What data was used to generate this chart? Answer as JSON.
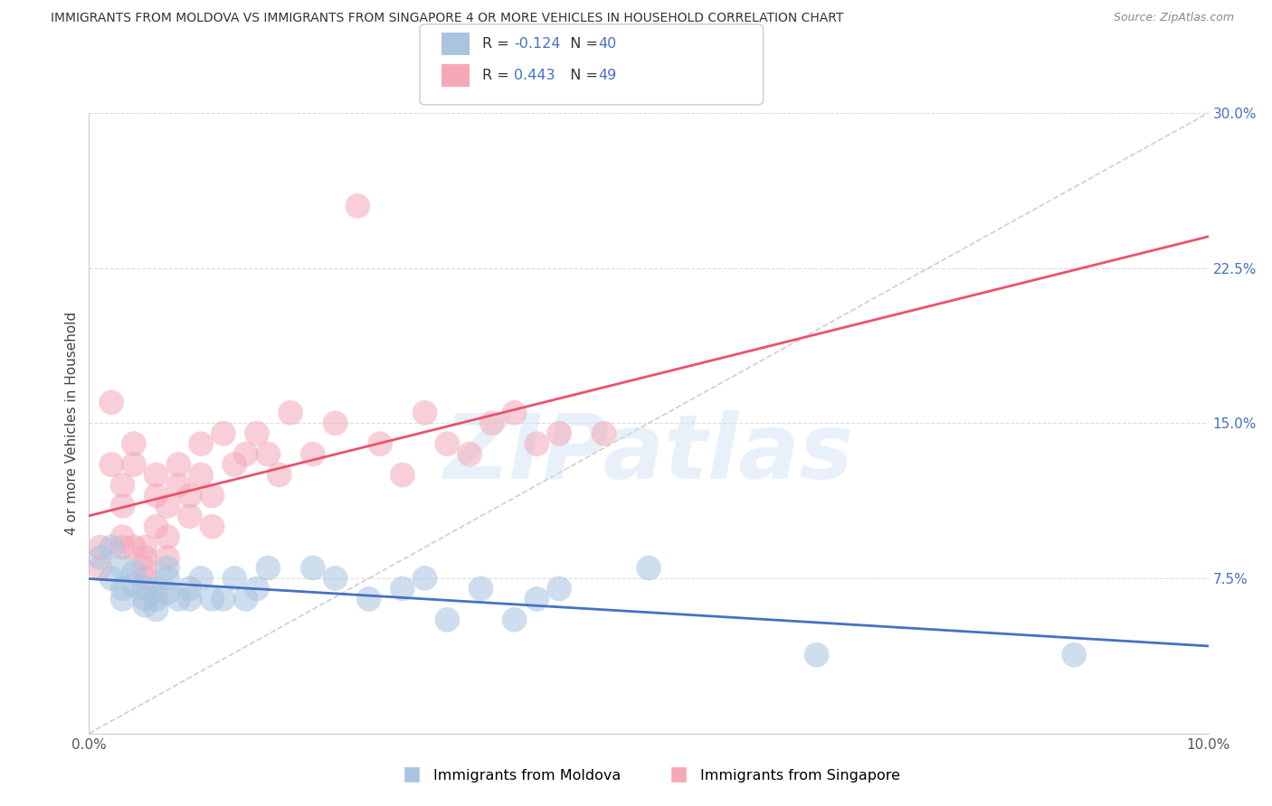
{
  "title": "IMMIGRANTS FROM MOLDOVA VS IMMIGRANTS FROM SINGAPORE 4 OR MORE VEHICLES IN HOUSEHOLD CORRELATION CHART",
  "source": "Source: ZipAtlas.com",
  "ylabel": "4 or more Vehicles in Household",
  "xmin": 0.0,
  "xmax": 0.1,
  "ymin": 0.0,
  "ymax": 0.3,
  "xticks": [
    0.0,
    0.02,
    0.04,
    0.06,
    0.08,
    0.1
  ],
  "yticks": [
    0.0,
    0.075,
    0.15,
    0.225,
    0.3
  ],
  "ytick_labels": [
    "",
    "7.5%",
    "15.0%",
    "22.5%",
    "30.0%"
  ],
  "xtick_labels": [
    "0.0%",
    "",
    "",
    "",
    "",
    "10.0%"
  ],
  "moldova_R": "-0.124",
  "moldova_N": "40",
  "singapore_R": "0.443",
  "singapore_N": "49",
  "moldova_color": "#a8c4e0",
  "singapore_color": "#f4a8b8",
  "moldova_line_color": "#4472c4",
  "singapore_line_color": "#e8536a",
  "diagonal_color": "#bbbbbb",
  "blue_text_color": "#4472c4",
  "legend_moldova": "Immigrants from Moldova",
  "legend_singapore": "Immigrants from Singapore",
  "moldova_x": [
    0.001,
    0.002,
    0.002,
    0.003,
    0.003,
    0.003,
    0.004,
    0.004,
    0.005,
    0.005,
    0.005,
    0.006,
    0.006,
    0.006,
    0.007,
    0.007,
    0.007,
    0.008,
    0.009,
    0.009,
    0.01,
    0.011,
    0.012,
    0.013,
    0.014,
    0.015,
    0.016,
    0.02,
    0.022,
    0.025,
    0.028,
    0.03,
    0.032,
    0.035,
    0.038,
    0.04,
    0.042,
    0.05,
    0.065,
    0.088
  ],
  "moldova_y": [
    0.085,
    0.09,
    0.075,
    0.07,
    0.065,
    0.08,
    0.078,
    0.072,
    0.065,
    0.062,
    0.07,
    0.07,
    0.065,
    0.06,
    0.08,
    0.075,
    0.068,
    0.065,
    0.07,
    0.065,
    0.075,
    0.065,
    0.065,
    0.075,
    0.065,
    0.07,
    0.08,
    0.08,
    0.075,
    0.065,
    0.07,
    0.075,
    0.055,
    0.07,
    0.055,
    0.065,
    0.07,
    0.08,
    0.038,
    0.038
  ],
  "singapore_x": [
    0.001,
    0.001,
    0.002,
    0.002,
    0.003,
    0.003,
    0.003,
    0.003,
    0.004,
    0.004,
    0.004,
    0.005,
    0.005,
    0.005,
    0.005,
    0.006,
    0.006,
    0.006,
    0.007,
    0.007,
    0.007,
    0.008,
    0.008,
    0.009,
    0.009,
    0.01,
    0.01,
    0.011,
    0.011,
    0.012,
    0.013,
    0.014,
    0.015,
    0.016,
    0.017,
    0.018,
    0.02,
    0.022,
    0.024,
    0.026,
    0.028,
    0.03,
    0.032,
    0.034,
    0.036,
    0.038,
    0.04,
    0.042,
    0.046
  ],
  "singapore_y": [
    0.09,
    0.08,
    0.16,
    0.13,
    0.095,
    0.12,
    0.11,
    0.09,
    0.14,
    0.13,
    0.09,
    0.075,
    0.08,
    0.085,
    0.09,
    0.125,
    0.115,
    0.1,
    0.11,
    0.095,
    0.085,
    0.13,
    0.12,
    0.115,
    0.105,
    0.14,
    0.125,
    0.115,
    0.1,
    0.145,
    0.13,
    0.135,
    0.145,
    0.135,
    0.125,
    0.155,
    0.135,
    0.15,
    0.255,
    0.14,
    0.125,
    0.155,
    0.14,
    0.135,
    0.15,
    0.155,
    0.14,
    0.145,
    0.145
  ]
}
